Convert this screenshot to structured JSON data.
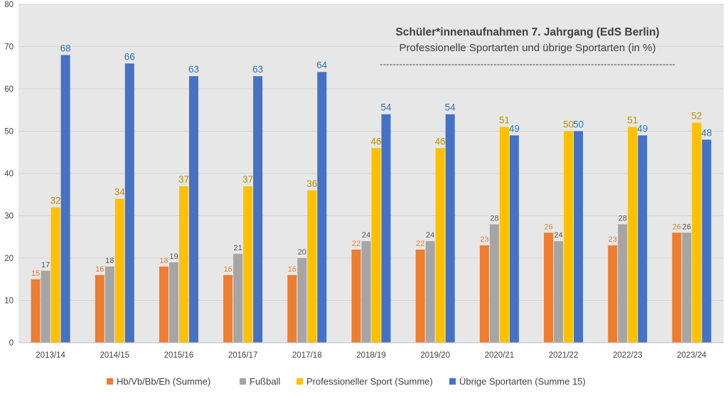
{
  "chart_data": {
    "type": "bar",
    "title": "Schüler*innenaufnahmen 7. Jahrgang (EdS Berlin)",
    "subtitle": "Professionelle Sportarten und übrige Sportarten (in %)",
    "divider_text": "-------------------------------------------------------------------------------------------",
    "categories": [
      "2013/14",
      "2014/15",
      "2015/16",
      "2016/17",
      "2017/18",
      "2018/19",
      "2019/20",
      "2020/21",
      "2021/22",
      "2022/23",
      "2023/24"
    ],
    "ylim": [
      0,
      80
    ],
    "yticks": [
      0,
      10,
      20,
      30,
      40,
      50,
      60,
      70,
      80
    ],
    "grid": true,
    "legend_position": "bottom",
    "series": [
      {
        "name": "Hb/Vb/Bb/Eh (Summe)",
        "color": "#ED7D31",
        "label_color": "#ED7D31",
        "values": [
          15,
          16,
          18,
          16,
          16,
          22,
          22,
          23,
          26,
          23,
          26
        ]
      },
      {
        "name": "Fußball",
        "color": "#A5A5A5",
        "label_color": "#595959",
        "values": [
          17,
          18,
          19,
          21,
          20,
          24,
          24,
          28,
          24,
          28,
          26
        ]
      },
      {
        "name": "Professioneller Sport (Summe)",
        "color": "#FFC000",
        "label_color": "#BF9000",
        "values": [
          32,
          34,
          37,
          37,
          36,
          46,
          46,
          51,
          50,
          51,
          52
        ]
      },
      {
        "name": "Übrige Sportarten (Summe 15)",
        "color": "#4472C4",
        "label_color": "#2E75B6",
        "values": [
          68,
          66,
          63,
          63,
          64,
          54,
          54,
          49,
          50,
          49,
          48
        ]
      }
    ]
  }
}
